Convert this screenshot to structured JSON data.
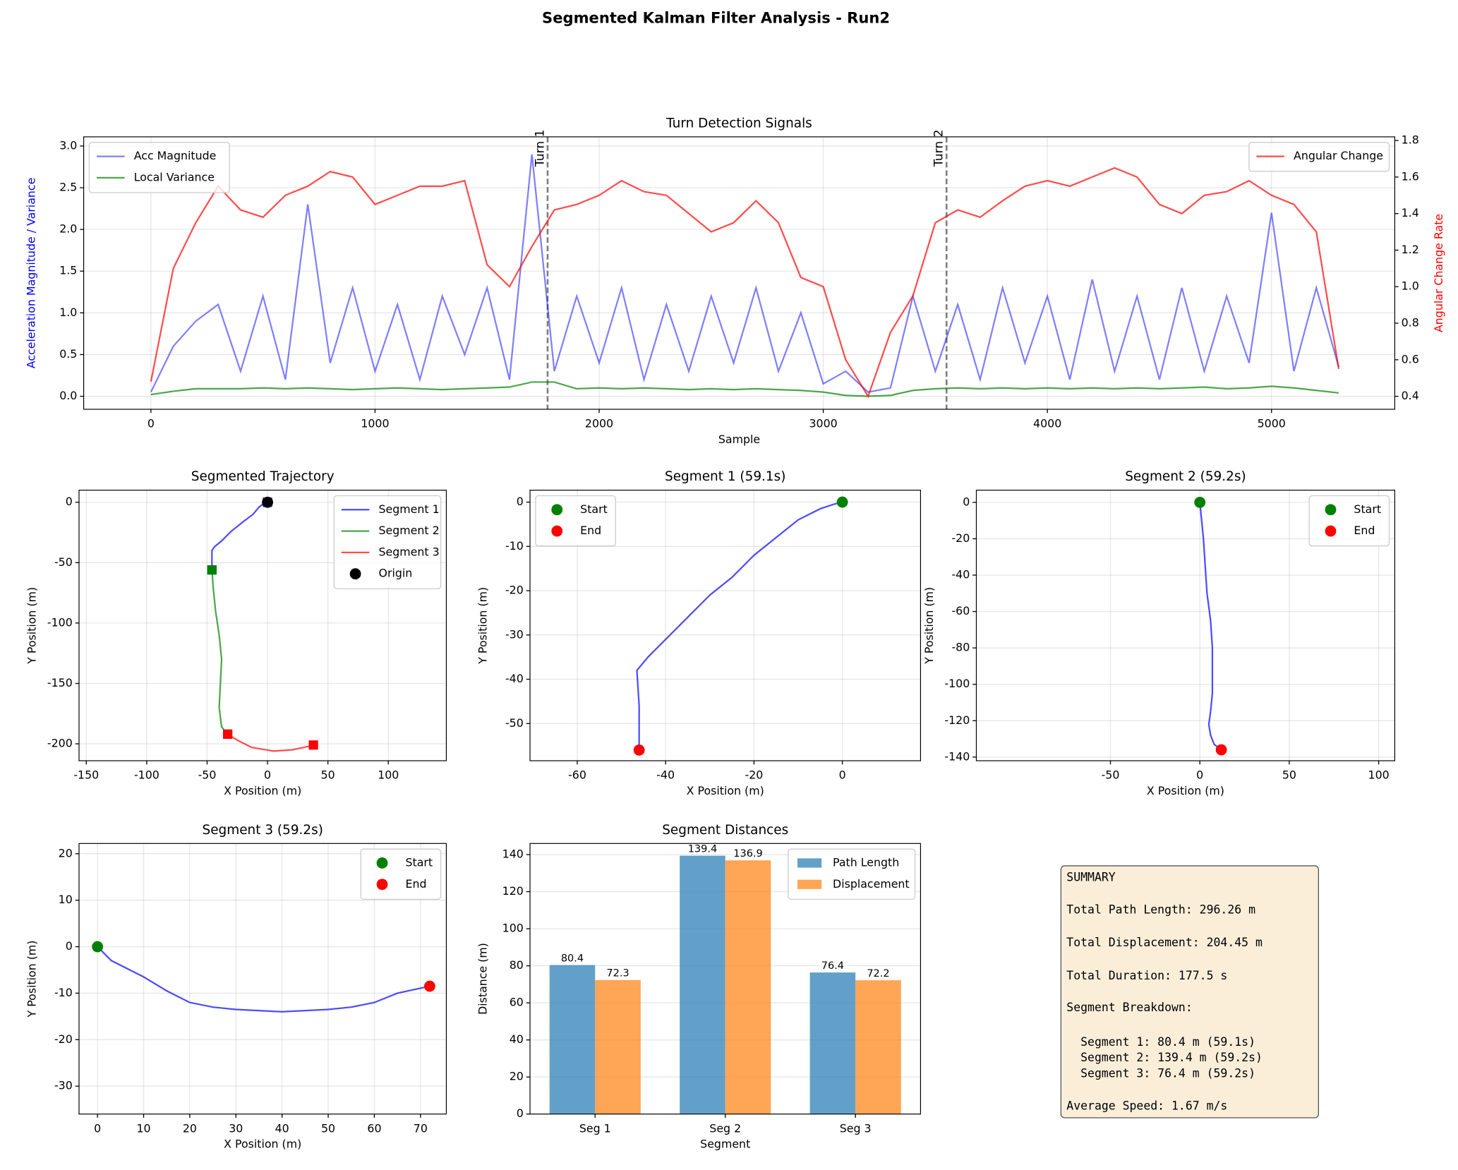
{
  "title": "Segmented Kalman Filter Analysis - Run2",
  "chart_data": [
    {
      "type": "line",
      "title": "Turn Detection Signals",
      "xlabel": "Sample",
      "ylabel": "Acceleration Magnitude / Variance",
      "ylabel_color": "#0000ff",
      "y2label": "Angular Change Rate",
      "y2label_color": "#ff0000",
      "x": [
        0,
        100,
        200,
        300,
        400,
        500,
        600,
        700,
        800,
        900,
        1000,
        1100,
        1200,
        1300,
        1400,
        1500,
        1600,
        1700,
        1800,
        1900,
        2000,
        2100,
        2200,
        2300,
        2400,
        2500,
        2600,
        2700,
        2800,
        2900,
        3000,
        3100,
        3200,
        3300,
        3400,
        3500,
        3600,
        3700,
        3800,
        3900,
        4000,
        4100,
        4200,
        4300,
        4400,
        4500,
        4600,
        4700,
        4800,
        4900,
        5000,
        5100,
        5200,
        5300
      ],
      "xlim": [
        -300,
        5550
      ],
      "xticks": [
        0,
        1000,
        2000,
        3000,
        4000,
        5000
      ],
      "ylim": [
        -0.156,
        3.11
      ],
      "yticks": [
        {
          "value": 0,
          "label": "0.0"
        },
        0.5,
        {
          "value": 1,
          "label": "1.0"
        },
        1.5,
        {
          "value": 2,
          "label": "2.0"
        },
        2.5,
        {
          "value": 3,
          "label": "3.0"
        }
      ],
      "y2lim": [
        0.329,
        1.82
      ],
      "y2ticks": [
        0.4,
        0.6,
        0.8,
        {
          "value": 1,
          "label": "1.0"
        },
        1.2,
        1.4,
        1.6,
        1.8
      ],
      "grid": true,
      "legend": "upper left",
      "legend2": "upper right",
      "vlines": [
        {
          "x": 1770,
          "label": "Turn 1"
        },
        {
          "x": 3550,
          "label": "Turn 2"
        }
      ],
      "series": [
        {
          "name": "Acc Magnitude",
          "color": "#0000ff",
          "alpha": 0.5,
          "values": [
            0.05,
            0.6,
            0.9,
            1.1,
            0.3,
            1.2,
            0.2,
            2.3,
            0.4,
            1.3,
            0.3,
            1.1,
            0.2,
            1.2,
            0.5,
            1.3,
            0.2,
            2.9,
            0.3,
            1.2,
            0.4,
            1.3,
            0.2,
            1.1,
            0.3,
            1.2,
            0.4,
            1.3,
            0.3,
            1.0,
            0.15,
            0.3,
            0.05,
            0.1,
            1.2,
            0.3,
            1.1,
            0.2,
            1.3,
            0.4,
            1.2,
            0.2,
            1.4,
            0.3,
            1.2,
            0.2,
            1.3,
            0.3,
            1.2,
            0.4,
            2.2,
            0.3,
            1.3,
            0.35
          ]
        },
        {
          "name": "Local Variance",
          "color": "#008000",
          "alpha": 0.7,
          "values": [
            0.02,
            0.06,
            0.09,
            0.09,
            0.09,
            0.1,
            0.09,
            0.1,
            0.09,
            0.08,
            0.09,
            0.1,
            0.09,
            0.08,
            0.09,
            0.1,
            0.11,
            0.17,
            0.17,
            0.09,
            0.1,
            0.09,
            0.1,
            0.09,
            0.08,
            0.09,
            0.08,
            0.09,
            0.08,
            0.07,
            0.05,
            0.01,
            0.0,
            0.01,
            0.07,
            0.09,
            0.1,
            0.09,
            0.1,
            0.09,
            0.1,
            0.09,
            0.1,
            0.09,
            0.1,
            0.09,
            0.1,
            0.11,
            0.09,
            0.1,
            0.12,
            0.1,
            0.07,
            0.04
          ]
        },
        {
          "name": "Angular Change",
          "color": "#ff0000",
          "alpha": 0.7,
          "axis": "y2",
          "values": [
            0.48,
            1.1,
            1.35,
            1.55,
            1.42,
            1.38,
            1.5,
            1.55,
            1.63,
            1.6,
            1.45,
            1.5,
            1.55,
            1.55,
            1.58,
            1.12,
            1.0,
            1.22,
            1.42,
            1.45,
            1.5,
            1.58,
            1.52,
            1.5,
            1.4,
            1.3,
            1.35,
            1.47,
            1.35,
            1.05,
            1.0,
            0.6,
            0.4,
            0.75,
            0.95,
            1.35,
            1.42,
            1.38,
            1.47,
            1.55,
            1.58,
            1.55,
            1.6,
            1.65,
            1.6,
            1.45,
            1.4,
            1.5,
            1.52,
            1.58,
            1.5,
            1.45,
            1.3,
            0.55
          ]
        }
      ]
    },
    {
      "type": "line",
      "title": "Segmented Trajectory",
      "xlabel": "X Position (m)",
      "ylabel": "Y Position (m)",
      "xlim": [
        -156,
        148
      ],
      "xticks": [
        -150,
        -100,
        -50,
        0,
        50,
        100
      ],
      "ylim": [
        -214,
        10
      ],
      "yticks": [
        -200,
        -150,
        -100,
        -50,
        0
      ],
      "grid": true,
      "legend": "upper right",
      "end_markers": "square",
      "series": [
        {
          "name": "Segment 1",
          "color": "#0000ff",
          "alpha": 0.7,
          "x": [
            0,
            -3,
            -7,
            -12,
            -20,
            -30,
            -38,
            -44,
            -46,
            -46,
            -46
          ],
          "values": [
            0,
            -1,
            -4,
            -10,
            -16,
            -24,
            -32,
            -37,
            -40,
            -48,
            -56
          ]
        },
        {
          "name": "Segment 2",
          "color": "#008000",
          "alpha": 0.7,
          "x": [
            -46,
            -45,
            -43,
            -40,
            -38,
            -39,
            -40,
            -38,
            -33
          ],
          "values": [
            -56,
            -70,
            -90,
            -110,
            -130,
            -150,
            -170,
            -186,
            -192
          ]
        },
        {
          "name": "Segment 3",
          "color": "#ff0000",
          "alpha": 0.7,
          "x": [
            -33,
            -25,
            -13,
            5,
            20,
            30,
            38
          ],
          "values": [
            -192,
            -197,
            -203,
            -206,
            -205,
            -203,
            -201
          ]
        },
        {
          "name": "Origin",
          "color": "#000000",
          "marker": "circle",
          "x": [
            0
          ],
          "values": [
            0
          ]
        }
      ]
    },
    {
      "type": "line",
      "title": "Segment 1 (59.1s)",
      "xlabel": "X Position (m)",
      "ylabel": "Y Position (m)",
      "xlim": [
        -70.7,
        17.7
      ],
      "xticks": [
        -60,
        -40,
        -20,
        0
      ],
      "ylim": [
        -58.4,
        2.7
      ],
      "yticks": [
        -50,
        -40,
        -30,
        -20,
        -10,
        0
      ],
      "grid": true,
      "legend": "upper left",
      "series": [
        {
          "color": "#0000ff",
          "alpha": 0.7,
          "x": [
            0,
            -2,
            -5,
            -10,
            -15,
            -20,
            -25,
            -30,
            -35,
            -40,
            -44,
            -46.5,
            -46,
            -46
          ],
          "values": [
            0,
            -0.5,
            -1.5,
            -4,
            -8,
            -12,
            -17,
            -21,
            -26,
            -31,
            -35,
            -38,
            -46,
            -56
          ]
        },
        {
          "name": "Start",
          "color": "#008000",
          "marker": "circle",
          "x": [
            0
          ],
          "values": [
            0
          ]
        },
        {
          "name": "End",
          "color": "#ff0000",
          "marker": "circle",
          "x": [
            -46
          ],
          "values": [
            -56
          ]
        }
      ]
    },
    {
      "type": "line",
      "title": "Segment 2 (59.2s)",
      "xlabel": "X Position (m)",
      "ylabel": "Y Position (m)",
      "xlim": [
        -125,
        109
      ],
      "xticks": [
        -50,
        0,
        50,
        100
      ],
      "ylim": [
        -142,
        6.7
      ],
      "yticks": [
        -140,
        -120,
        -100,
        -80,
        -60,
        -40,
        -20,
        0
      ],
      "grid": true,
      "legend": "upper right",
      "series": [
        {
          "color": "#0000ff",
          "alpha": 0.7,
          "x": [
            0,
            1,
            2,
            3,
            4,
            6,
            7,
            7,
            7,
            6,
            5,
            6,
            8,
            12
          ],
          "values": [
            0,
            -10,
            -20,
            -35,
            -50,
            -65,
            -80,
            -95,
            -105,
            -115,
            -122,
            -128,
            -133,
            -136
          ]
        },
        {
          "name": "Start",
          "color": "#008000",
          "marker": "circle",
          "x": [
            0
          ],
          "values": [
            0
          ]
        },
        {
          "name": "End",
          "color": "#ff0000",
          "marker": "circle",
          "x": [
            12
          ],
          "values": [
            -136
          ]
        }
      ]
    },
    {
      "type": "line",
      "title": "Segment 3 (59.2s)",
      "xlabel": "X Position (m)",
      "ylabel": "Y Position (m)",
      "xlim": [
        -4,
        75.6
      ],
      "xticks": [
        0,
        10,
        20,
        30,
        40,
        50,
        60,
        70
      ],
      "ylim": [
        -36,
        22.2
      ],
      "yticks": [
        -30,
        -20,
        -10,
        0,
        10,
        20
      ],
      "grid": true,
      "legend": "upper right",
      "series": [
        {
          "color": "#0000ff",
          "alpha": 0.7,
          "x": [
            0,
            3,
            10,
            15,
            20,
            25,
            30,
            40,
            50,
            55,
            60,
            65,
            72
          ],
          "values": [
            0,
            -3,
            -6.5,
            -9.5,
            -12,
            -13,
            -13.5,
            -14,
            -13.5,
            -13,
            -12,
            -10,
            -8.5
          ]
        },
        {
          "name": "Start",
          "color": "#008000",
          "marker": "circle",
          "x": [
            0
          ],
          "values": [
            0
          ]
        },
        {
          "name": "End",
          "color": "#ff0000",
          "marker": "circle",
          "x": [
            72
          ],
          "values": [
            -8.5
          ]
        }
      ]
    },
    {
      "type": "bar",
      "title": "Segment Distances",
      "xlabel": "Segment",
      "ylabel": "Distance (m)",
      "categories": [
        "Seg 1",
        "Seg 2",
        "Seg 3"
      ],
      "ylim": [
        0,
        146
      ],
      "yticks": [
        0,
        20,
        40,
        60,
        80,
        100,
        120,
        140
      ],
      "grid": true,
      "legend": "upper right",
      "series": [
        {
          "name": "Path Length",
          "color": "#1f77b4",
          "alpha": 0.7,
          "values": [
            80.4,
            139.4,
            76.4
          ]
        },
        {
          "name": "Displacement",
          "color": "#ff7f0e",
          "alpha": 0.7,
          "values": [
            72.3,
            136.9,
            72.2
          ]
        }
      ]
    }
  ],
  "summary": {
    "lines": [
      "SUMMARY",
      "Total Path Length: 296.26 m",
      "Total Displacement: 204.45 m",
      "Total Duration: 177.5 s",
      "Segment Breakdown:",
      "  Segment 1: 80.4 m (59.1s)",
      "  Segment 2: 139.4 m (59.2s)",
      "  Segment 3: 76.4 m (59.2s)",
      "Average Speed: 1.67 m/s"
    ]
  }
}
